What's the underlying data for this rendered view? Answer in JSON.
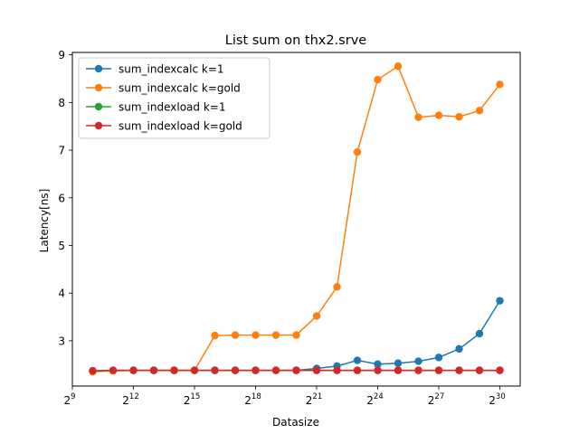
{
  "chart_data": {
    "type": "line",
    "title": "List sum on thx2.srve",
    "xlabel": "Datasize",
    "ylabel": "Latency[ns]",
    "x_scale": "log2",
    "x_ticks": [
      {
        "base": "2",
        "exp": "9",
        "value": 9
      },
      {
        "base": "2",
        "exp": "12",
        "value": 12
      },
      {
        "base": "2",
        "exp": "15",
        "value": 15
      },
      {
        "base": "2",
        "exp": "18",
        "value": 18
      },
      {
        "base": "2",
        "exp": "21",
        "value": 21
      },
      {
        "base": "2",
        "exp": "24",
        "value": 24
      },
      {
        "base": "2",
        "exp": "27",
        "value": 27
      },
      {
        "base": "2",
        "exp": "30",
        "value": 30
      }
    ],
    "y_ticks": [
      "3",
      "4",
      "5",
      "6",
      "7",
      "8",
      "9"
    ],
    "xlim_log2": [
      9,
      31
    ],
    "ylim": [
      2.05,
      9.05
    ],
    "grid": false,
    "legend_position": "top-left",
    "x_log2": [
      10,
      11,
      12,
      13,
      14,
      15,
      16,
      17,
      18,
      19,
      20,
      21,
      22,
      23,
      24,
      25,
      26,
      27,
      28,
      29,
      30
    ],
    "series": [
      {
        "name": "sum_indexcalc k=1",
        "color": "#1f77b4",
        "values": [
          2.36,
          2.38,
          2.38,
          2.38,
          2.38,
          2.38,
          2.38,
          2.38,
          2.38,
          2.38,
          2.38,
          2.42,
          2.47,
          2.59,
          2.51,
          2.53,
          2.57,
          2.65,
          2.83,
          3.15,
          3.84
        ]
      },
      {
        "name": "sum_indexcalc k=gold",
        "color": "#ff7f0e",
        "values": [
          2.35,
          2.37,
          2.38,
          2.38,
          2.38,
          2.38,
          3.11,
          3.12,
          3.12,
          3.12,
          3.12,
          3.52,
          4.13,
          6.96,
          8.48,
          8.76,
          7.69,
          7.73,
          7.7,
          7.83,
          8.38
        ]
      },
      {
        "name": "sum_indexload k=1",
        "color": "#2ca02c",
        "values": [
          2.37,
          2.38,
          2.38,
          2.38,
          2.38,
          2.38,
          2.38,
          2.38,
          2.38,
          2.38,
          2.38,
          2.38,
          2.38,
          2.38,
          2.38,
          2.38,
          2.38,
          2.38,
          2.38,
          2.38,
          2.38
        ]
      },
      {
        "name": "sum_indexload k=gold",
        "color": "#d62728",
        "values": [
          2.37,
          2.38,
          2.38,
          2.38,
          2.38,
          2.38,
          2.38,
          2.38,
          2.38,
          2.38,
          2.38,
          2.38,
          2.38,
          2.38,
          2.38,
          2.38,
          2.38,
          2.38,
          2.38,
          2.38,
          2.38
        ]
      }
    ]
  }
}
